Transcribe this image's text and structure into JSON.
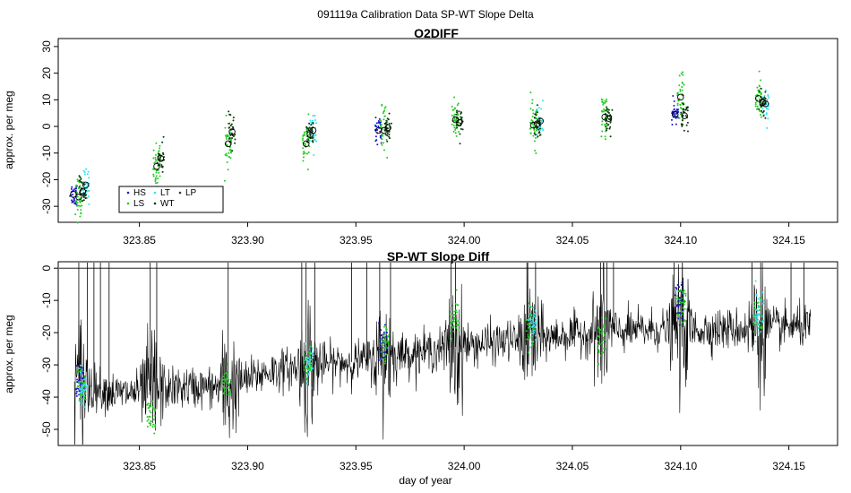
{
  "figure": {
    "title": "091119a   Calibration Data SP-WT Slope Delta"
  },
  "colors": {
    "HS": "#1a1acc",
    "LS": "#22cc22",
    "LT": "#33e0ee",
    "WT": "#0a3a0a",
    "LP": "#333333",
    "line": "#000000"
  },
  "chart_data": [
    {
      "type": "scatter",
      "title": "O2DIFF",
      "xlabel": "",
      "ylabel": "approx. per meg",
      "xlim": [
        323.8125,
        324.1725
      ],
      "ylim": [
        -36,
        33
      ],
      "xticks": [
        "323.85",
        "323.90",
        "323.95",
        "324.00",
        "324.05",
        "324.10",
        "324.15"
      ],
      "yticks": [
        "-30",
        "-20",
        "-10",
        "0",
        "10",
        "20",
        "30"
      ],
      "grid": false,
      "legend": {
        "placement": "bottom-left",
        "entries": [
          "HS",
          "LS",
          "LT",
          "WT",
          "LP"
        ]
      },
      "series_groups": [
        {
          "day": 323.822,
          "HS": -25.5,
          "LS": -26.5,
          "LT": -22.0,
          "WT": -24.5
        },
        {
          "day": 323.858,
          "LS": -15.0,
          "WT": -12.0
        },
        {
          "day": 323.891,
          "LS": -6.5,
          "WT": -2.0
        },
        {
          "day": 323.927,
          "LS": -6.5,
          "LT": -1.5,
          "WT": -3.0
        },
        {
          "day": 323.963,
          "HS": -1.5,
          "LS": -1.5,
          "WT": -0.5
        },
        {
          "day": 323.996,
          "LS": 2.5,
          "WT": 1.5
        },
        {
          "day": 324.032,
          "LS": 0.5,
          "LT": 2.0,
          "WT": 1.0
        },
        {
          "day": 324.065,
          "LS": 3.5,
          "WT": 3.0
        },
        {
          "day": 324.1,
          "HS": 4.5,
          "LS": 11.0,
          "WT": 4.0
        },
        {
          "day": 324.136,
          "LS": 10.5,
          "LT": 8.5,
          "WT": 9.0
        }
      ]
    },
    {
      "type": "line",
      "title": "SP-WT Slope Diff",
      "xlabel": "day of year",
      "ylabel": "approx. per meg",
      "xlim": [
        323.8125,
        324.1725
      ],
      "ylim": [
        -55,
        2
      ],
      "xticks": [
        "323.85",
        "323.90",
        "323.95",
        "324.00",
        "324.05",
        "324.10",
        "324.15"
      ],
      "yticks": [
        "-50",
        "-40",
        "-30",
        "-20",
        "-10",
        "0"
      ],
      "grid": false,
      "reference_line": 0,
      "x_range": [
        323.82,
        324.16
      ],
      "trend": [
        {
          "x": 323.82,
          "y": -35
        },
        {
          "x": 323.84,
          "y": -39
        },
        {
          "x": 323.87,
          "y": -37
        },
        {
          "x": 323.89,
          "y": -37
        },
        {
          "x": 323.91,
          "y": -32
        },
        {
          "x": 323.93,
          "y": -30
        },
        {
          "x": 323.95,
          "y": -29
        },
        {
          "x": 323.965,
          "y": -27
        },
        {
          "x": 323.98,
          "y": -26
        },
        {
          "x": 324.0,
          "y": -24
        },
        {
          "x": 324.03,
          "y": -22
        },
        {
          "x": 324.06,
          "y": -20
        },
        {
          "x": 324.09,
          "y": -19
        },
        {
          "x": 324.12,
          "y": -19
        },
        {
          "x": 324.16,
          "y": -18
        }
      ],
      "calibration_windows": [
        {
          "day": 323.823,
          "colors": [
            "HS",
            "LS",
            "LT"
          ],
          "level": -37
        },
        {
          "day": 323.856,
          "colors": [
            "LS"
          ],
          "level": -47
        },
        {
          "day": 323.891,
          "colors": [
            "LS"
          ],
          "level": -36
        },
        {
          "day": 323.928,
          "colors": [
            "LS",
            "LT"
          ],
          "level": -29
        },
        {
          "day": 323.963,
          "colors": [
            "HS",
            "LS"
          ],
          "level": -22
        },
        {
          "day": 323.996,
          "colors": [
            "LS"
          ],
          "level": -12
        },
        {
          "day": 324.031,
          "colors": [
            "LS",
            "LT"
          ],
          "level": -16
        },
        {
          "day": 324.064,
          "colors": [
            "LS"
          ],
          "level": -21
        },
        {
          "day": 324.1,
          "colors": [
            "HS",
            "LS"
          ],
          "level": -8
        },
        {
          "day": 324.136,
          "colors": [
            "LS",
            "LT"
          ],
          "level": -13
        }
      ]
    }
  ]
}
